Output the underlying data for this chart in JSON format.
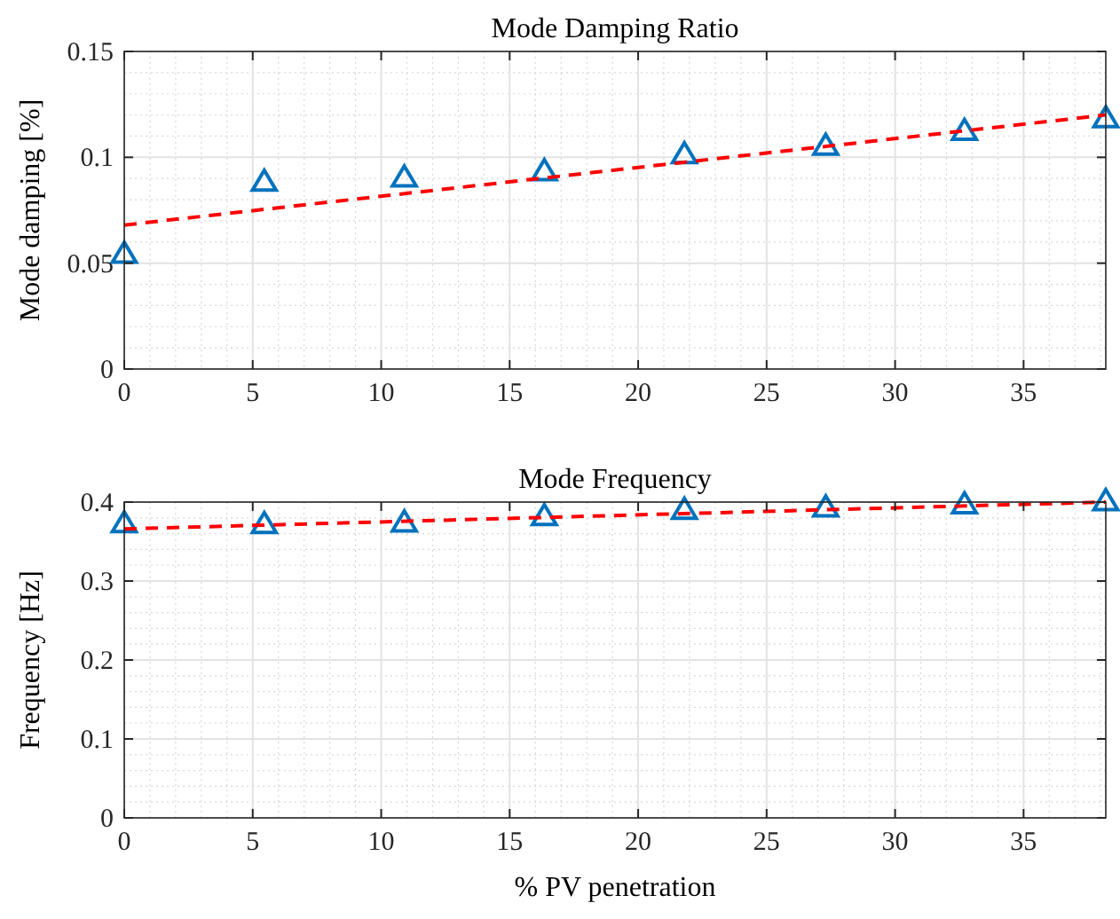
{
  "chart_data": [
    {
      "type": "scatter",
      "title": "Mode Damping Ratio",
      "ylabel": "Mode damping [%]",
      "xlim": [
        0,
        38.2
      ],
      "xticks": [
        0,
        5,
        10,
        15,
        20,
        25,
        30,
        35
      ],
      "ylim": [
        0,
        0.15
      ],
      "yticks": [
        0,
        0.05,
        0.1,
        0.15
      ],
      "grid": true,
      "series": [
        {
          "color": "#0072bd",
          "marker": "triangle",
          "x": [
            0,
            5.45,
            10.9,
            16.35,
            21.8,
            27.3,
            32.7,
            38.2
          ],
          "values": [
            0.054,
            0.088,
            0.09,
            0.093,
            0.101,
            0.105,
            0.112,
            0.118
          ]
        },
        {
          "type": "line",
          "color": "#ff0000",
          "line_style": "dashed",
          "marker": "none",
          "x": [
            0,
            38.2
          ],
          "values": [
            0.068,
            0.12
          ]
        }
      ]
    },
    {
      "type": "scatter",
      "title": "Mode Frequency",
      "ylabel": "Frequency [Hz]",
      "xlabel": "% PV penetration",
      "xlim": [
        0,
        38.2
      ],
      "xticks": [
        0,
        5,
        10,
        15,
        20,
        25,
        30,
        35
      ],
      "ylim": [
        0,
        0.4
      ],
      "yticks": [
        0,
        0.1,
        0.2,
        0.3,
        0.4
      ],
      "grid": true,
      "series": [
        {
          "color": "#0072bd",
          "marker": "triangle",
          "x": [
            0,
            5.45,
            10.9,
            16.35,
            21.8,
            27.3,
            32.7,
            38.2
          ],
          "values": [
            0.372,
            0.371,
            0.373,
            0.381,
            0.389,
            0.392,
            0.396,
            0.4
          ]
        },
        {
          "type": "line",
          "color": "#ff0000",
          "line_style": "dashed",
          "marker": "none",
          "x": [
            0,
            38.2
          ],
          "values": [
            0.366,
            0.4
          ]
        }
      ]
    }
  ]
}
